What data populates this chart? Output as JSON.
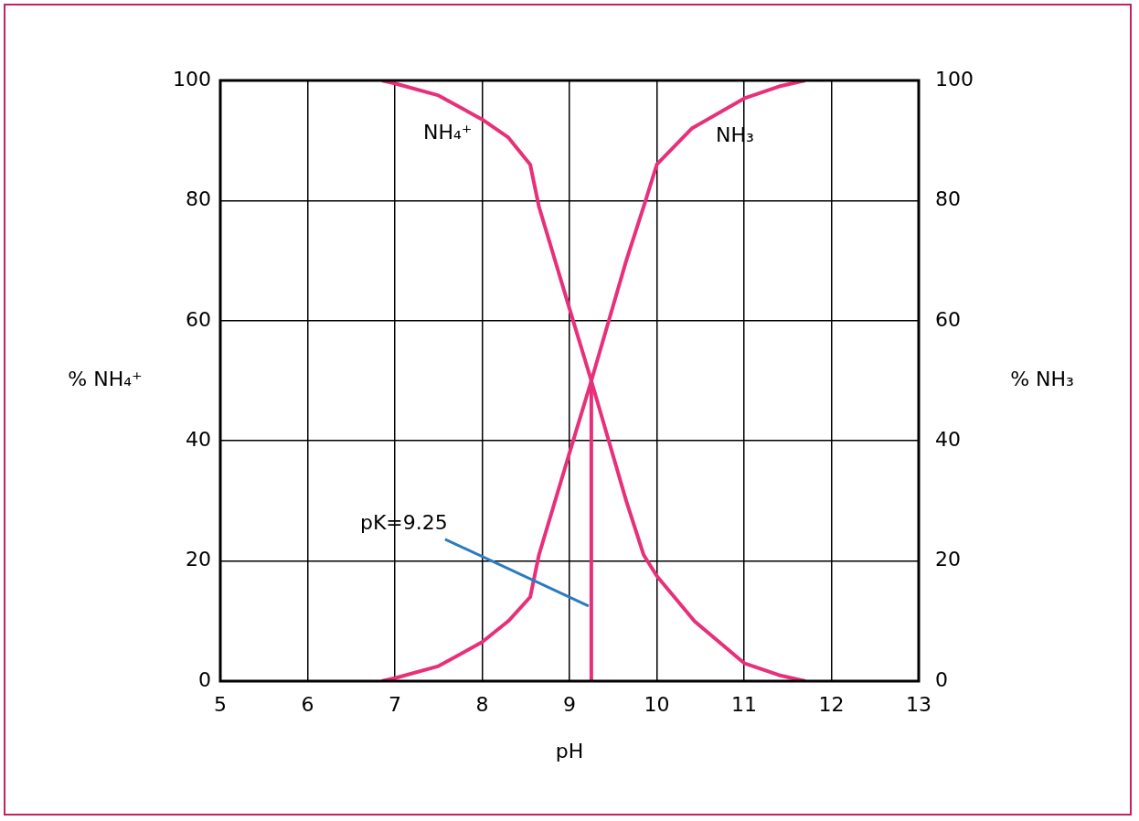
{
  "chart_data": {
    "type": "line",
    "xlabel": "pH",
    "ylabel": "% NH₄⁺",
    "y2label": "% NH₃",
    "xlim": [
      5,
      13
    ],
    "xticks": [
      5,
      6,
      7,
      8,
      9,
      10,
      11,
      12,
      13
    ],
    "ylim": [
      0,
      100
    ],
    "yticks": [
      0,
      20,
      40,
      60,
      80,
      100
    ],
    "y2lim": [
      0,
      100
    ],
    "y2ticks": [
      0,
      20,
      40,
      60,
      80,
      100
    ],
    "grid": true,
    "legend": false,
    "marker": "none",
    "line_style": "solid",
    "series": [
      {
        "name": "NH₄⁺",
        "color": "#e8307a",
        "x": [
          6.85,
          7,
          7.5,
          8,
          8.3,
          8.55,
          8.65,
          9,
          9.25,
          9.65,
          9.85,
          10,
          10.43,
          11,
          11.4,
          11.7
        ],
        "values": [
          100,
          99.5,
          97.5,
          93.5,
          90.5,
          86,
          79,
          62,
          50,
          30,
          21,
          17.5,
          10,
          3,
          1,
          0
        ]
      },
      {
        "name": "NH₃",
        "color": "#e8307a",
        "axis": "y2",
        "x": [
          6.85,
          7,
          7.5,
          8,
          8.3,
          8.55,
          8.65,
          9,
          9.25,
          9.65,
          9.85,
          10,
          10.4,
          11,
          11.4,
          11.7
        ],
        "values": [
          0,
          0.5,
          2.5,
          6.5,
          10,
          14,
          21,
          38,
          50,
          70,
          79,
          86,
          92,
          97,
          99,
          100
        ]
      },
      {
        "color": "#e8307a",
        "x": [
          9.25,
          9.25
        ],
        "values": [
          0,
          50
        ]
      }
    ],
    "annotations": [
      {
        "text": "pK=9.25",
        "x": 9.25,
        "y": 12.5
      }
    ]
  }
}
